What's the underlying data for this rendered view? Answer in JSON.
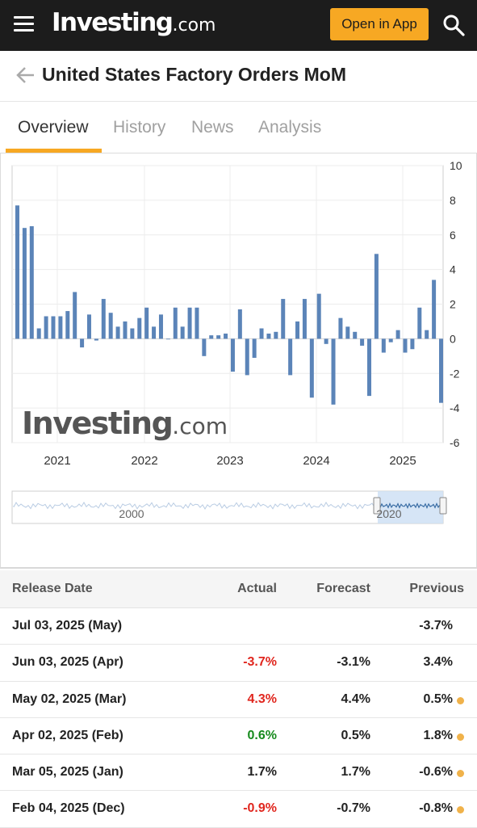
{
  "header": {
    "logo_main": "Investing",
    "logo_suffix": ".com",
    "open_app_label": "Open in App"
  },
  "page": {
    "title": "United States Factory Orders MoM"
  },
  "tabs": [
    {
      "label": "Overview",
      "active": true
    },
    {
      "label": "History",
      "active": false
    },
    {
      "label": "News",
      "active": false
    },
    {
      "label": "Analysis",
      "active": false
    }
  ],
  "chart_data": {
    "type": "bar",
    "watermark_main": "Investing",
    "watermark_suffix": ".com",
    "bar_color": "#5b84b8",
    "ylim": [
      -6,
      10
    ],
    "yticks": [
      "10",
      "8",
      "6",
      "4",
      "2",
      "0",
      "-2",
      "-4",
      "-6"
    ],
    "xticks": [
      "2021",
      "2022",
      "2023",
      "2024",
      "2025"
    ],
    "navigator_labels": [
      "2000",
      "2020"
    ],
    "values": [
      7.7,
      6.4,
      6.5,
      0.6,
      1.3,
      1.3,
      1.3,
      1.6,
      2.7,
      -0.5,
      1.4,
      -0.1,
      2.3,
      1.5,
      0.7,
      1.0,
      0.6,
      1.2,
      1.8,
      0.7,
      1.4,
      0.0,
      1.8,
      0.7,
      1.8,
      1.8,
      -1.0,
      0.2,
      0.2,
      0.3,
      -1.9,
      1.7,
      -2.1,
      -1.1,
      0.6,
      0.3,
      0.4,
      2.3,
      -2.1,
      1.0,
      2.3,
      -3.4,
      2.6,
      -0.3,
      -3.8,
      1.2,
      0.7,
      0.4,
      -0.4,
      -3.3,
      4.9,
      -0.8,
      -0.2,
      0.5,
      -0.8,
      -0.6,
      1.8,
      0.5,
      3.4,
      -3.7
    ]
  },
  "table": {
    "headers": {
      "release_date": "Release Date",
      "actual": "Actual",
      "forecast": "Forecast",
      "previous": "Previous"
    },
    "rows": [
      {
        "date": "Jul 03, 2025 (May)",
        "actual": "",
        "actual_color": "",
        "forecast": "",
        "previous": "-3.7%",
        "dot": false
      },
      {
        "date": "Jun 03, 2025 (Apr)",
        "actual": "-3.7%",
        "actual_color": "red",
        "forecast": "-3.1%",
        "previous": "3.4%",
        "dot": false
      },
      {
        "date": "May 02, 2025 (Mar)",
        "actual": "4.3%",
        "actual_color": "red",
        "forecast": "4.4%",
        "previous": "0.5%",
        "dot": true
      },
      {
        "date": "Apr 02, 2025 (Feb)",
        "actual": "0.6%",
        "actual_color": "green",
        "forecast": "0.5%",
        "previous": "1.8%",
        "dot": true
      },
      {
        "date": "Mar 05, 2025 (Jan)",
        "actual": "1.7%",
        "actual_color": "",
        "forecast": "1.7%",
        "previous": "-0.6%",
        "dot": true
      },
      {
        "date": "Feb 04, 2025 (Dec)",
        "actual": "-0.9%",
        "actual_color": "red",
        "forecast": "-0.7%",
        "previous": "-0.8%",
        "dot": true
      }
    ]
  }
}
